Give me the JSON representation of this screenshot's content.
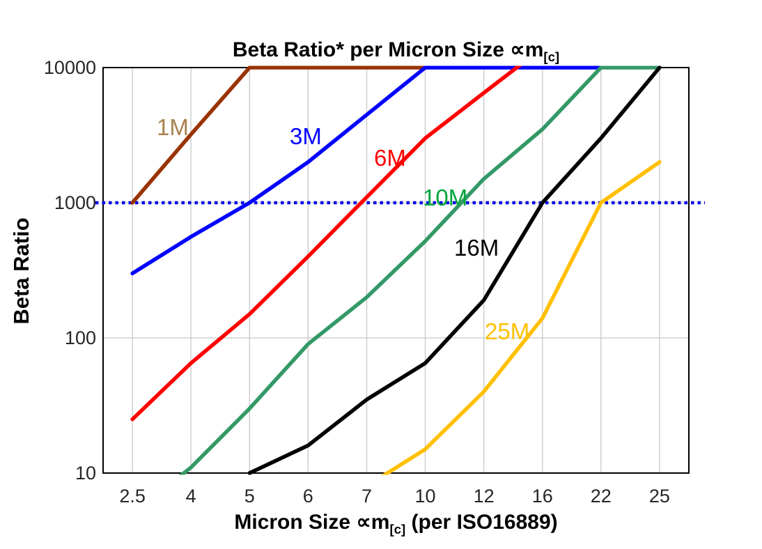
{
  "text": {
    "title_pre": "Beta Ratio* per Micron Size ∝m",
    "title_sub": "[c]",
    "xlabel_pre": "Micron Size ∝m",
    "xlabel_sub": "[c]",
    "xlabel_post": " (per ISO16889)",
    "ylabel": "Beta Ratio"
  },
  "chart_data": {
    "type": "line",
    "title": "Beta Ratio* per Micron Size ∝m[c]",
    "xlabel": "Micron Size ∝m[c] (per ISO16889)",
    "ylabel": "Beta Ratio",
    "x_axis": {
      "scale": "category",
      "categories": [
        "2.5",
        "4",
        "5",
        "6",
        "7",
        "10",
        "12",
        "16",
        "22",
        "25"
      ]
    },
    "y_axis": {
      "scale": "log",
      "range": [
        10,
        10000
      ],
      "ticks": [
        "10",
        "100",
        "1000",
        "10000"
      ],
      "gridlines": [
        100,
        1000
      ]
    },
    "grid_color": "#C8C8C8",
    "border_color": "#000000",
    "tick_label_color": "#262626",
    "ref_line": {
      "y": 1000,
      "style": "dotted",
      "color": "#0505E8",
      "note": "horizontal dotted blue line at Beta Ratio = 1000, extends slightly past plot edges"
    },
    "series": [
      {
        "name": "1M",
        "color": "#993300",
        "label_color": "#A8824F",
        "label_pos": [
          225,
          194
        ],
        "points": [
          [
            2.5,
            1000
          ],
          [
            4,
            3200
          ],
          [
            5,
            10000
          ],
          [
            10,
            10000
          ]
        ]
      },
      {
        "name": "3M",
        "color": "#0000FF",
        "label_color": "#0000FF",
        "label_pos": [
          416,
          207
        ],
        "points": [
          [
            2.5,
            300
          ],
          [
            4,
            560
          ],
          [
            5,
            1000
          ],
          [
            6,
            2000
          ],
          [
            10,
            10000
          ],
          [
            22,
            10000
          ]
        ]
      },
      {
        "name": "6M",
        "color": "#FF0000",
        "label_color": "#FF0000",
        "label_pos": [
          537,
          238
        ],
        "points": [
          [
            2.5,
            25
          ],
          [
            4,
            65
          ],
          [
            5,
            150
          ],
          [
            6,
            400
          ],
          [
            7,
            1100
          ],
          [
            10,
            3000
          ],
          [
            12,
            6500
          ],
          [
            16,
            14000
          ]
        ],
        "note": "line is clipped at axis maximum 10000 between micron sizes 12 and 16"
      },
      {
        "name": "10M",
        "color": "#339966",
        "label_color": "#00A53C",
        "label_pos": [
          607,
          295
        ],
        "points": [
          [
            2.5,
            5
          ],
          [
            4,
            11
          ],
          [
            5,
            30
          ],
          [
            6,
            90
          ],
          [
            7,
            200
          ],
          [
            10,
            520
          ],
          [
            12,
            1500
          ],
          [
            16,
            3500
          ],
          [
            22,
            10000
          ],
          [
            25,
            10000
          ]
        ],
        "note": "enters plot from below axis minimum just left of category 4"
      },
      {
        "name": "16M",
        "color": "#000000",
        "label_color": "#000000",
        "label_pos": [
          652,
          367
        ],
        "points": [
          [
            5,
            10
          ],
          [
            6,
            16
          ],
          [
            7,
            35
          ],
          [
            10,
            65
          ],
          [
            12,
            190
          ],
          [
            16,
            1000
          ],
          [
            22,
            3000
          ],
          [
            25,
            10000
          ]
        ]
      },
      {
        "name": "25M",
        "color": "#FFC000",
        "label_color": "#FFC000",
        "label_pos": [
          696,
          487
        ],
        "points": [
          [
            7,
            8
          ],
          [
            10,
            15
          ],
          [
            12,
            40
          ],
          [
            16,
            140
          ],
          [
            22,
            1000
          ],
          [
            25,
            2000
          ]
        ],
        "note": "enters plot from below axis minimum between categories 7 and 10"
      }
    ]
  }
}
